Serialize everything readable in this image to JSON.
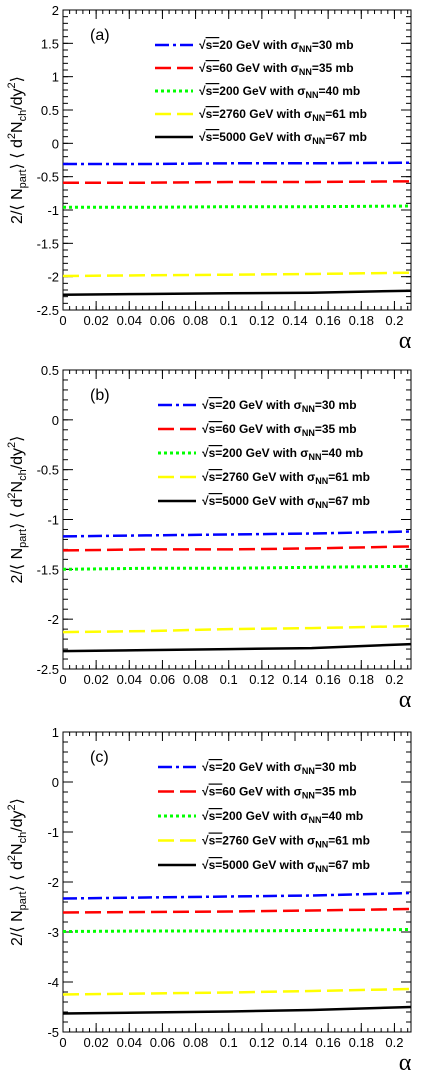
{
  "chart_data": [
    {
      "type": "line",
      "panel_label": "(a)",
      "ylabel": "2/⟨ N_part⟩ ⟨ d²N_ch/dy²⟩",
      "xlabel": "α",
      "xlim": [
        0,
        0.21
      ],
      "ylim": [
        -2.5,
        2
      ],
      "x_ticks": [
        "0",
        "0.02",
        "0.04",
        "0.06",
        "0.08",
        "0.1",
        "0.12",
        "0.14",
        "0.16",
        "0.18",
        "0.2"
      ],
      "y_ticks": [
        "-2.5",
        "-2",
        "-1.5",
        "-1",
        "-0.5",
        "0",
        "0.5",
        "1",
        "1.5",
        "2"
      ],
      "y_tick_values": [
        -2.5,
        -2,
        -1.5,
        -1,
        -0.5,
        0,
        0.5,
        1,
        1.5,
        2
      ],
      "legend_position": "top-right",
      "series": [
        {
          "sqrt_s": "20",
          "sigma": "30",
          "color": "#0000ff",
          "dash": "dashdot",
          "x": [
            0,
            0.05,
            0.1,
            0.15,
            0.21
          ],
          "values": [
            -0.31,
            -0.31,
            -0.3,
            -0.3,
            -0.29
          ]
        },
        {
          "sqrt_s": "60",
          "sigma": "35",
          "color": "#ff0000",
          "dash": "longdash",
          "x": [
            0,
            0.05,
            0.1,
            0.15,
            0.21
          ],
          "values": [
            -0.59,
            -0.59,
            -0.58,
            -0.58,
            -0.57
          ]
        },
        {
          "sqrt_s": "200",
          "sigma": "40",
          "color": "#00ff00",
          "dash": "dotted",
          "x": [
            0,
            0.05,
            0.1,
            0.15,
            0.21
          ],
          "values": [
            -0.96,
            -0.96,
            -0.95,
            -0.95,
            -0.94
          ]
        },
        {
          "sqrt_s": "2760",
          "sigma": "61",
          "color": "#ffff00",
          "dash": "longdash",
          "x": [
            0,
            0.05,
            0.1,
            0.15,
            0.21
          ],
          "values": [
            -1.99,
            -1.98,
            -1.97,
            -1.96,
            -1.94
          ]
        },
        {
          "sqrt_s": "5000",
          "sigma": "67",
          "color": "#000000",
          "dash": "solid",
          "x": [
            0,
            0.05,
            0.1,
            0.15,
            0.21
          ],
          "values": [
            -2.27,
            -2.26,
            -2.25,
            -2.24,
            -2.21
          ]
        }
      ]
    },
    {
      "type": "line",
      "panel_label": "(b)",
      "ylabel": "2/⟨ N_part⟩ ⟨ d²N_ch/dy²⟩",
      "xlabel": "α",
      "xlim": [
        0,
        0.21
      ],
      "ylim": [
        -2.5,
        0.5
      ],
      "x_ticks": [
        "0",
        "0.02",
        "0.04",
        "0.06",
        "0.08",
        "0.1",
        "0.12",
        "0.14",
        "0.16",
        "0.18",
        "0.2"
      ],
      "y_ticks": [
        "-2.5",
        "-2",
        "-1.5",
        "-1",
        "-0.5",
        "0",
        "0.5"
      ],
      "y_tick_values": [
        -2.5,
        -2,
        -1.5,
        -1,
        -0.5,
        0,
        0.5
      ],
      "legend_position": "top-right",
      "series": [
        {
          "sqrt_s": "20",
          "sigma": "30",
          "color": "#0000ff",
          "dash": "dashdot",
          "x": [
            0,
            0.05,
            0.1,
            0.15,
            0.21
          ],
          "values": [
            -1.17,
            -1.16,
            -1.15,
            -1.14,
            -1.12
          ]
        },
        {
          "sqrt_s": "60",
          "sigma": "35",
          "color": "#ff0000",
          "dash": "longdash",
          "x": [
            0,
            0.05,
            0.1,
            0.15,
            0.21
          ],
          "values": [
            -1.31,
            -1.3,
            -1.3,
            -1.29,
            -1.27
          ]
        },
        {
          "sqrt_s": "200",
          "sigma": "40",
          "color": "#00ff00",
          "dash": "dotted",
          "x": [
            0,
            0.05,
            0.1,
            0.15,
            0.21
          ],
          "values": [
            -1.5,
            -1.49,
            -1.49,
            -1.48,
            -1.47
          ]
        },
        {
          "sqrt_s": "2760",
          "sigma": "61",
          "color": "#ffff00",
          "dash": "longdash",
          "x": [
            0,
            0.05,
            0.1,
            0.15,
            0.21
          ],
          "values": [
            -2.13,
            -2.12,
            -2.1,
            -2.09,
            -2.07
          ]
        },
        {
          "sqrt_s": "5000",
          "sigma": "67",
          "color": "#000000",
          "dash": "solid",
          "x": [
            0,
            0.05,
            0.1,
            0.15,
            0.21
          ],
          "values": [
            -2.32,
            -2.31,
            -2.3,
            -2.29,
            -2.25
          ]
        }
      ]
    },
    {
      "type": "line",
      "panel_label": "(c)",
      "ylabel": "2/⟨ N_part⟩ ⟨ d²N_ch/dy²⟩",
      "xlabel": "α",
      "xlim": [
        0,
        0.21
      ],
      "ylim": [
        -5,
        1
      ],
      "x_ticks": [
        "0",
        "0.02",
        "0.04",
        "0.06",
        "0.08",
        "0.1",
        "0.12",
        "0.14",
        "0.16",
        "0.18",
        "0.2"
      ],
      "y_ticks": [
        "-5",
        "-4",
        "-3",
        "-2",
        "-1",
        "0",
        "1"
      ],
      "y_tick_values": [
        -5,
        -4,
        -3,
        -2,
        -1,
        0,
        1
      ],
      "legend_position": "top-right",
      "series": [
        {
          "sqrt_s": "20",
          "sigma": "30",
          "color": "#0000ff",
          "dash": "dashdot",
          "x": [
            0,
            0.05,
            0.1,
            0.15,
            0.21
          ],
          "values": [
            -2.33,
            -2.31,
            -2.29,
            -2.27,
            -2.22
          ]
        },
        {
          "sqrt_s": "60",
          "sigma": "35",
          "color": "#ff0000",
          "dash": "longdash",
          "x": [
            0,
            0.05,
            0.1,
            0.15,
            0.21
          ],
          "values": [
            -2.61,
            -2.6,
            -2.59,
            -2.57,
            -2.54
          ]
        },
        {
          "sqrt_s": "200",
          "sigma": "40",
          "color": "#00ff00",
          "dash": "dotted",
          "x": [
            0,
            0.05,
            0.1,
            0.15,
            0.21
          ],
          "values": [
            -2.99,
            -2.98,
            -2.98,
            -2.97,
            -2.95
          ]
        },
        {
          "sqrt_s": "2760",
          "sigma": "61",
          "color": "#ffff00",
          "dash": "longdash",
          "x": [
            0,
            0.05,
            0.1,
            0.15,
            0.21
          ],
          "values": [
            -4.25,
            -4.23,
            -4.21,
            -4.18,
            -4.14
          ]
        },
        {
          "sqrt_s": "5000",
          "sigma": "67",
          "color": "#000000",
          "dash": "solid",
          "x": [
            0,
            0.05,
            0.1,
            0.15,
            0.21
          ],
          "values": [
            -4.63,
            -4.61,
            -4.59,
            -4.56,
            -4.5
          ]
        }
      ]
    }
  ],
  "legend_parts": {
    "sqrt": "√",
    "s_eq": "s=",
    "gev_with": " GeV with σ",
    "nn": "NN",
    "eq": "=",
    "mb": " mb"
  },
  "ylabel_parts": {
    "p1": "2/⟨ N",
    "part": "part",
    "p2": "⟩ ⟨ d",
    "sup2": "2",
    "p3": "N",
    "ch": "ch",
    "p4": "/dy",
    "sup2b": "2",
    "p5": "⟩"
  }
}
